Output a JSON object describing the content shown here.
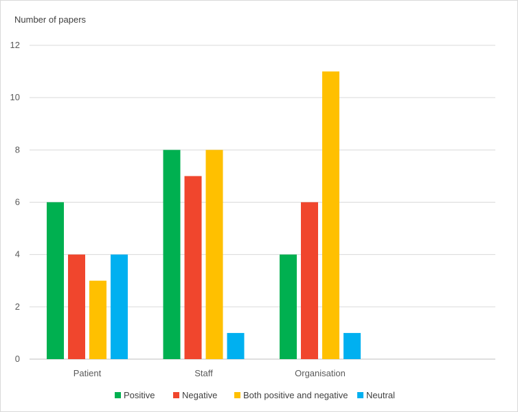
{
  "chart_data": {
    "type": "bar",
    "title": "",
    "xlabel": "",
    "ylabel": "Number of papers",
    "ylim": [
      0,
      12
    ],
    "y_ticks": [
      0,
      2,
      4,
      6,
      8,
      10,
      12
    ],
    "grid": true,
    "legend_position": "bottom",
    "categories": [
      "Patient",
      "Staff",
      "Organisation",
      ""
    ],
    "series": [
      {
        "name": "Positive",
        "color": "#00b050",
        "values": [
          6,
          8,
          4,
          null
        ]
      },
      {
        "name": "Negative",
        "color": "#f0462d",
        "values": [
          4,
          7,
          6,
          null
        ]
      },
      {
        "name": "Both positive and negative",
        "color": "#ffc000",
        "values": [
          3,
          8,
          11,
          null
        ]
      },
      {
        "name": "Neutral",
        "color": "#00b0f0",
        "values": [
          4,
          1,
          1,
          null
        ]
      }
    ]
  }
}
